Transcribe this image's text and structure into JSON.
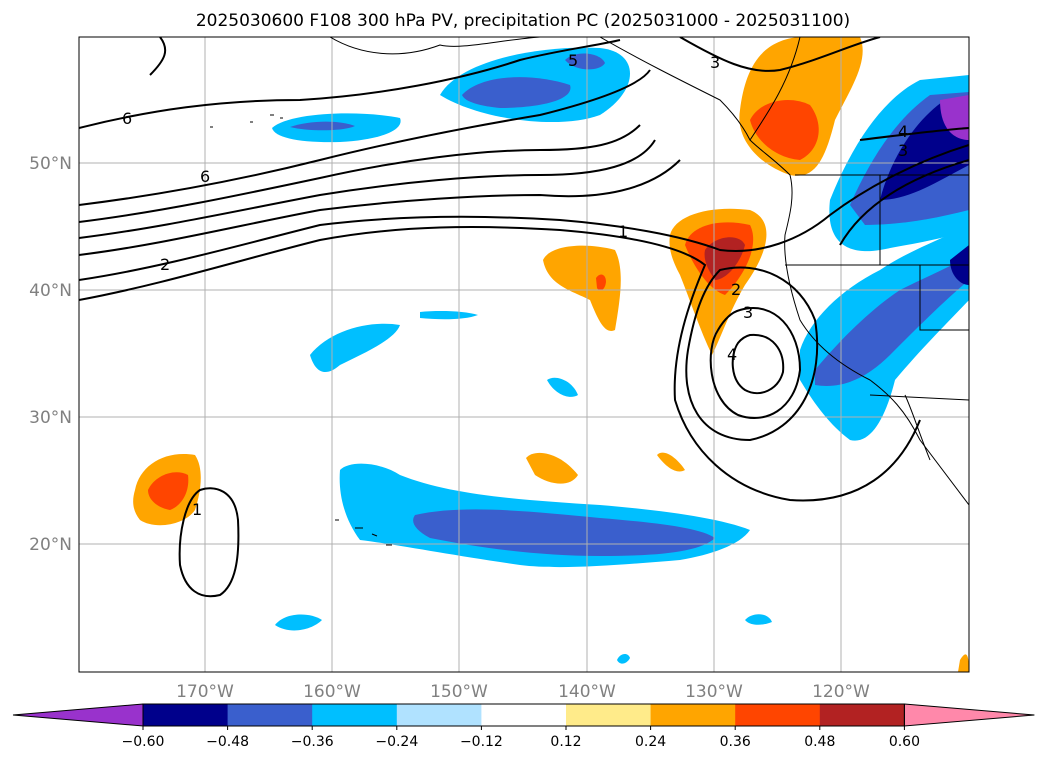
{
  "title": "2025030600 F108 300 hPa PV, precipitation PC (2025031000 - 2025031100)",
  "lon_ticks": [
    "170°W",
    "160°W",
    "150°W",
    "140°W",
    "130°W",
    "120°W"
  ],
  "lat_ticks": [
    "50°N",
    "40°N",
    "30°N",
    "20°N"
  ],
  "colorbar": {
    "ticks": [
      "−0.60",
      "−0.48",
      "−0.36",
      "−0.24",
      "−0.12",
      "0.12",
      "0.24",
      "0.36",
      "0.48",
      "0.60"
    ],
    "colors": [
      "#9932cc",
      "#00008b",
      "#3a5fcd",
      "#00bfff",
      "#b0e2ff",
      "#ffffff",
      "#ffeb8a",
      "#ffa500",
      "#ff4500",
      "#b22222",
      "#ff88aa"
    ],
    "extend": "both"
  },
  "contour_labels": [
    "6",
    "6",
    "5",
    "3",
    "4",
    "3",
    "1",
    "2",
    "2",
    "3",
    "4",
    "1"
  ],
  "chart_data": {
    "type": "heatmap",
    "title": "2025030600 F108 300 hPa PV, precipitation PC (2025031000 - 2025031100)",
    "lon_range_deg": [
      -180,
      -110
    ],
    "lat_range_deg": [
      10,
      60
    ],
    "shading_levels": [
      -0.6,
      -0.48,
      -0.36,
      -0.24,
      -0.12,
      0.12,
      0.24,
      0.36,
      0.48,
      0.6
    ],
    "pv_contour_levels": [
      1,
      2,
      3,
      4,
      5,
      6
    ],
    "grid": true
  }
}
